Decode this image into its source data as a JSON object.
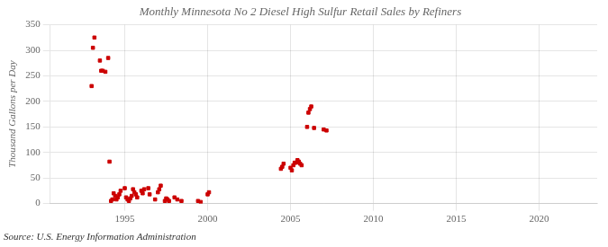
{
  "chart_data": {
    "type": "scatter",
    "title": "Monthly Minnesota No 2 Diesel High Sulfur Retail Sales by Refiners",
    "ylabel": "Thousand Gallons per Day",
    "source": "Source: U.S. Energy Information Administration",
    "color": "#cc0000",
    "marker": "square",
    "grid": true,
    "xlim": [
      1990.5,
      2023.5
    ],
    "ylim": [
      0,
      350
    ],
    "xticks": [
      1995,
      2000,
      2005,
      2010,
      2015,
      2020
    ],
    "yticks": [
      0,
      50,
      100,
      150,
      200,
      250,
      300,
      350
    ],
    "x": [
      1993.0,
      1993.08,
      1993.17,
      1993.5,
      1993.58,
      1993.67,
      1993.83,
      1994.0,
      1994.08,
      1994.17,
      1994.25,
      1994.33,
      1994.42,
      1994.5,
      1994.58,
      1994.67,
      1994.75,
      1995.0,
      1995.08,
      1995.17,
      1995.25,
      1995.33,
      1995.42,
      1995.5,
      1995.58,
      1995.67,
      1995.75,
      1996.0,
      1996.08,
      1996.17,
      1996.42,
      1996.5,
      1996.83,
      1997.0,
      1997.08,
      1997.17,
      1997.42,
      1997.5,
      1997.58,
      1997.67,
      1998.0,
      1998.17,
      1998.42,
      1999.42,
      1999.58,
      2000.0,
      2000.08,
      2004.42,
      2004.5,
      2004.58,
      2005.0,
      2005.08,
      2005.17,
      2005.25,
      2005.33,
      2005.42,
      2005.5,
      2005.58,
      2005.67,
      2006.0,
      2006.08,
      2006.17,
      2006.25,
      2006.42,
      2007.0,
      2007.17
    ],
    "values": [
      230,
      305,
      325,
      280,
      260,
      260,
      258,
      285,
      82,
      5,
      8,
      20,
      15,
      8,
      12,
      18,
      25,
      30,
      12,
      8,
      5,
      10,
      15,
      28,
      22,
      18,
      12,
      25,
      20,
      28,
      30,
      18,
      8,
      22,
      28,
      35,
      5,
      10,
      8,
      5,
      12,
      8,
      5,
      5,
      3,
      18,
      22,
      68,
      72,
      78,
      70,
      65,
      75,
      80,
      80,
      85,
      82,
      78,
      75,
      150,
      178,
      185,
      190,
      148,
      145,
      143
    ]
  }
}
